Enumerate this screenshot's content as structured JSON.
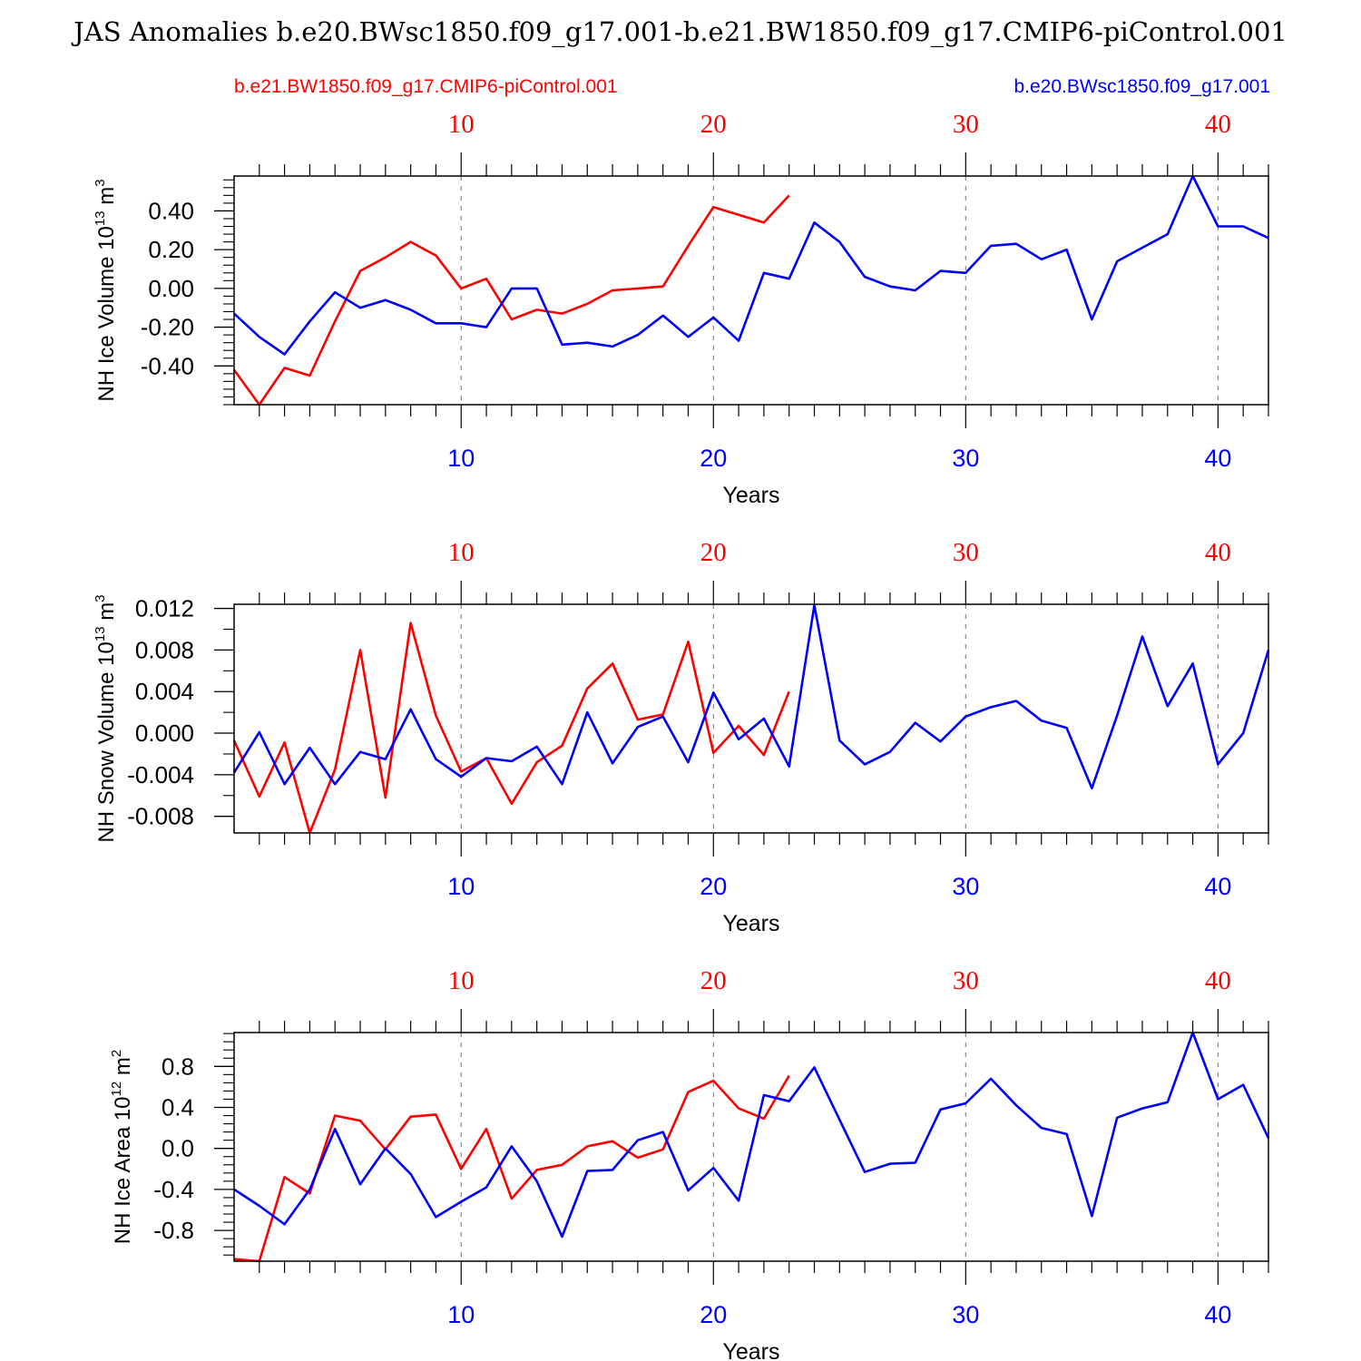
{
  "title": "JAS Anomalies b.e20.BWsc1850.f09_g17.001-b.e21.BW1850.f09_g17.CMIP6-piControl.001",
  "legend": {
    "left_label": "b.e21.BW1850.f09_g17.CMIP6-piControl.001",
    "right_label": "b.e20.BWsc1850.f09_g17.001"
  },
  "colors": {
    "control": "#ff0000",
    "experiment": "#0000ff",
    "axis": "#000000",
    "grid": "#888888"
  },
  "chart_data": [
    {
      "type": "line",
      "ylabel_main": "NH Ice Volume 10",
      "ylabel_exp": "13",
      "ylabel_unit": " m",
      "ylabel_unit_exp": "3",
      "xlabel": "Years",
      "xlim": [
        1,
        42
      ],
      "ylim": [
        -0.6,
        0.58
      ],
      "yticks": [
        -0.4,
        -0.2,
        0.0,
        0.2,
        0.4
      ],
      "ytick_labels": [
        "-0.40",
        "-0.20",
        "0.00",
        "0.20",
        "0.40"
      ],
      "yminor_step": 0.04,
      "xticks": [
        10,
        20,
        30,
        40
      ],
      "top_tick_labels": [
        "10",
        "20",
        "30",
        "40"
      ],
      "bottom_tick_labels": [
        "10",
        "20",
        "30",
        "40"
      ],
      "series": [
        {
          "name": "b.e21.BW1850.f09_g17.CMIP6-piControl.001",
          "color": "#ff0000",
          "x": [
            1,
            2,
            3,
            4,
            5,
            6,
            7,
            8,
            9,
            10,
            11,
            12,
            13,
            14,
            15,
            16,
            17,
            18,
            19,
            20,
            21,
            22,
            23
          ],
          "values": [
            -0.42,
            -0.6,
            -0.41,
            -0.45,
            -0.17,
            0.09,
            0.16,
            0.24,
            0.17,
            0.0,
            0.05,
            -0.16,
            -0.11,
            -0.13,
            -0.08,
            -0.01,
            0.0,
            0.01,
            0.22,
            0.42,
            0.38,
            0.34,
            0.48
          ]
        },
        {
          "name": "b.e20.BWsc1850.f09_g17.001",
          "color": "#0000ff",
          "x": [
            1,
            2,
            3,
            4,
            5,
            6,
            7,
            8,
            9,
            10,
            11,
            12,
            13,
            14,
            15,
            16,
            17,
            18,
            19,
            20,
            21,
            22,
            23,
            24,
            25,
            26,
            27,
            28,
            29,
            30,
            31,
            32,
            33,
            34,
            35,
            36,
            37,
            38,
            39,
            40,
            41,
            42
          ],
          "values": [
            -0.13,
            -0.25,
            -0.34,
            -0.17,
            -0.02,
            -0.1,
            -0.06,
            -0.11,
            -0.18,
            -0.18,
            -0.2,
            0.0,
            0.0,
            -0.29,
            -0.28,
            -0.3,
            -0.24,
            -0.14,
            -0.25,
            -0.15,
            -0.27,
            0.08,
            0.05,
            0.34,
            0.24,
            0.06,
            0.01,
            -0.01,
            0.09,
            0.08,
            0.22,
            0.23,
            0.15,
            0.2,
            -0.16,
            0.14,
            0.21,
            0.28,
            0.58,
            0.32,
            0.32,
            0.26
          ]
        }
      ]
    },
    {
      "type": "line",
      "ylabel_main": "NH Snow Volume 10",
      "ylabel_exp": "13",
      "ylabel_unit": " m",
      "ylabel_unit_exp": "3",
      "xlabel": "Years",
      "xlim": [
        1,
        42
      ],
      "ylim": [
        -0.0096,
        0.0124
      ],
      "yticks": [
        -0.008,
        -0.004,
        0.0,
        0.004,
        0.008,
        0.012
      ],
      "ytick_labels": [
        "-0.008",
        "-0.004",
        "0.000",
        "0.004",
        "0.008",
        "0.012"
      ],
      "yminor_step": 0.002,
      "xticks": [
        10,
        20,
        30,
        40
      ],
      "top_tick_labels": [
        "10",
        "20",
        "30",
        "40"
      ],
      "bottom_tick_labels": [
        "10",
        "20",
        "30",
        "40"
      ],
      "series": [
        {
          "name": "b.e21.BW1850.f09_g17.CMIP6-piControl.001",
          "color": "#ff0000",
          "x": [
            1,
            2,
            3,
            4,
            5,
            6,
            7,
            8,
            9,
            10,
            11,
            12,
            13,
            14,
            15,
            16,
            17,
            18,
            19,
            20,
            21,
            22,
            23
          ],
          "values": [
            -0.0007,
            -0.0061,
            -0.0009,
            -0.0096,
            -0.0035,
            0.008,
            -0.0062,
            0.0106,
            0.0017,
            -0.0037,
            -0.0024,
            -0.0068,
            -0.0028,
            -0.0012,
            0.0043,
            0.0067,
            0.0013,
            0.0018,
            0.0088,
            -0.0019,
            0.0007,
            -0.0021,
            0.004
          ]
        },
        {
          "name": "b.e20.BWsc1850.f09_g17.001",
          "color": "#0000ff",
          "x": [
            1,
            2,
            3,
            4,
            5,
            6,
            7,
            8,
            9,
            10,
            11,
            12,
            13,
            14,
            15,
            16,
            17,
            18,
            19,
            20,
            21,
            22,
            23,
            24,
            25,
            26,
            27,
            28,
            29,
            30,
            31,
            32,
            33,
            34,
            35,
            36,
            37,
            38,
            39,
            40,
            41,
            42
          ],
          "values": [
            -0.0038,
            0.0001,
            -0.0049,
            -0.0014,
            -0.0049,
            -0.0018,
            -0.0025,
            0.0023,
            -0.0025,
            -0.0042,
            -0.0024,
            -0.0027,
            -0.0013,
            -0.0049,
            0.002,
            -0.0029,
            0.0006,
            0.0016,
            -0.0028,
            0.0039,
            -0.0006,
            0.0014,
            -0.0032,
            0.0123,
            -0.0007,
            -0.003,
            -0.0018,
            0.001,
            -0.0008,
            0.0016,
            0.0025,
            0.0031,
            0.0012,
            0.0005,
            -0.0053,
            0.0017,
            0.0093,
            0.0026,
            0.0067,
            -0.003,
            0.0,
            0.008
          ]
        }
      ]
    },
    {
      "type": "line",
      "ylabel_main": "NH Ice Area 10",
      "ylabel_exp": "12",
      "ylabel_unit": " m",
      "ylabel_unit_exp": "2",
      "xlabel": "Years",
      "xlim": [
        1,
        42
      ],
      "ylim": [
        -1.1,
        1.13
      ],
      "yticks": [
        -0.8,
        -0.4,
        0.0,
        0.4,
        0.8
      ],
      "ytick_labels": [
        "-0.8",
        "-0.4",
        "0.0",
        "0.4",
        "0.8"
      ],
      "yminor_step": 0.08,
      "xticks": [
        10,
        20,
        30,
        40
      ],
      "top_tick_labels": [
        "10",
        "20",
        "30",
        "40"
      ],
      "bottom_tick_labels": [
        "10",
        "20",
        "30",
        "40"
      ],
      "series": [
        {
          "name": "b.e21.BW1850.f09_g17.CMIP6-piControl.001",
          "color": "#ff0000",
          "x": [
            1,
            2,
            3,
            4,
            5,
            6,
            7,
            8,
            9,
            10,
            11,
            12,
            13,
            14,
            15,
            16,
            17,
            18,
            19,
            20,
            21,
            22,
            23
          ],
          "values": [
            -1.08,
            -1.1,
            -0.28,
            -0.44,
            0.32,
            0.27,
            -0.01,
            0.31,
            0.33,
            -0.2,
            0.19,
            -0.49,
            -0.21,
            -0.16,
            0.02,
            0.07,
            -0.09,
            -0.01,
            0.55,
            0.66,
            0.39,
            0.29,
            0.71
          ]
        },
        {
          "name": "b.e20.BWsc1850.f09_g17.001",
          "color": "#0000ff",
          "x": [
            1,
            2,
            3,
            4,
            5,
            6,
            7,
            8,
            9,
            10,
            11,
            12,
            13,
            14,
            15,
            16,
            17,
            18,
            19,
            20,
            21,
            22,
            23,
            24,
            25,
            26,
            27,
            28,
            29,
            30,
            31,
            32,
            33,
            34,
            35,
            36,
            37,
            38,
            39,
            40,
            41,
            42
          ],
          "values": [
            -0.4,
            -0.56,
            -0.74,
            -0.4,
            0.19,
            -0.35,
            0.0,
            -0.25,
            -0.67,
            -0.52,
            -0.38,
            0.02,
            -0.32,
            -0.86,
            -0.22,
            -0.21,
            0.08,
            0.16,
            -0.41,
            -0.19,
            -0.51,
            0.52,
            0.46,
            0.79,
            0.28,
            -0.23,
            -0.15,
            -0.14,
            0.38,
            0.44,
            0.68,
            0.42,
            0.2,
            0.14,
            -0.66,
            0.3,
            0.39,
            0.45,
            1.13,
            0.48,
            0.62,
            0.1
          ]
        }
      ]
    }
  ]
}
